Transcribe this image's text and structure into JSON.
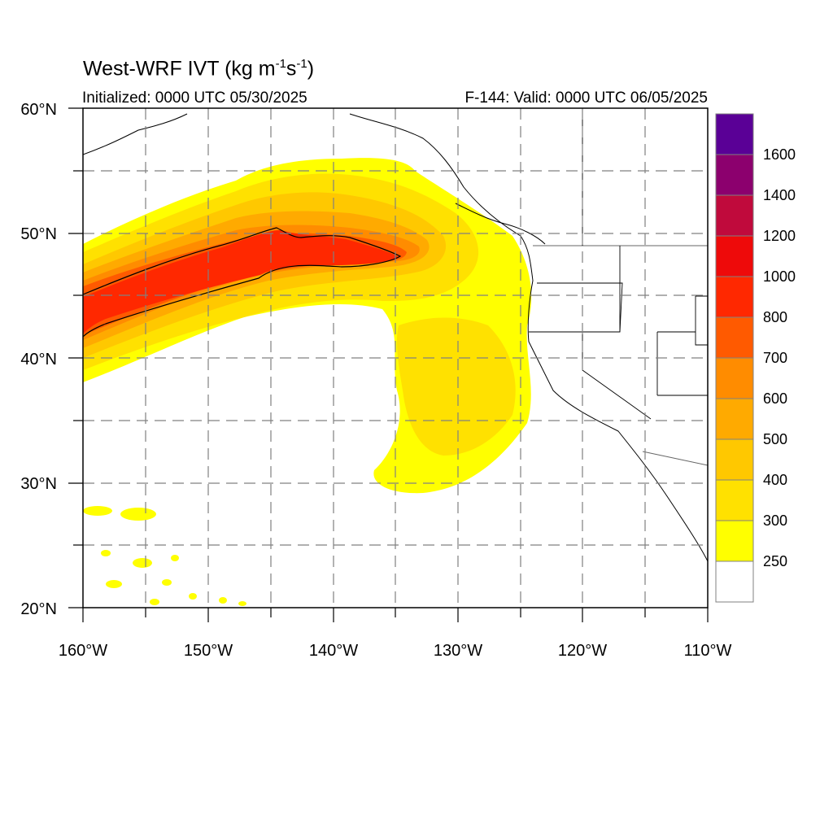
{
  "title": {
    "text": "West-WRF IVT (kg m",
    "exp1": "-1",
    "mid": "s",
    "exp2": "-1",
    "end": ")"
  },
  "subtitle_left": "Initialized: 0000 UTC 05/30/2025",
  "subtitle_right": "F-144: Valid: 0000 UTC 06/05/2025",
  "map": {
    "lon_range": [
      -160,
      -110
    ],
    "lat_range": [
      20,
      60
    ],
    "grid": true,
    "projection": "cylindrical equidistant",
    "x_tick_labels": [
      "160°W",
      "150°W",
      "140°W",
      "130°W",
      "120°W",
      "110°W"
    ],
    "y_tick_labels": [
      "20°N",
      "30°N",
      "40°N",
      "50°N",
      "60°N"
    ],
    "highlight_contour_value": 800,
    "feature": "atmospheric river extending from the central North Pacific into the Pacific Northwest and California coast"
  },
  "colorbar": {
    "orientation": "vertical",
    "placement": "right",
    "levels": [
      250,
      300,
      400,
      500,
      600,
      700,
      800,
      1000,
      1200,
      1400,
      1600
    ],
    "labels": [
      "250",
      "300",
      "400",
      "500",
      "600",
      "700",
      "800",
      "1000",
      "1200",
      "1400",
      "1600"
    ],
    "colors": [
      "#ffffff",
      "#ffff00",
      "#ffe100",
      "#ffc800",
      "#ffaa00",
      "#ff8c00",
      "#ff5a00",
      "#ff2800",
      "#ee0a0a",
      "#c00a3c",
      "#8c006e",
      "#5a0096"
    ]
  }
}
